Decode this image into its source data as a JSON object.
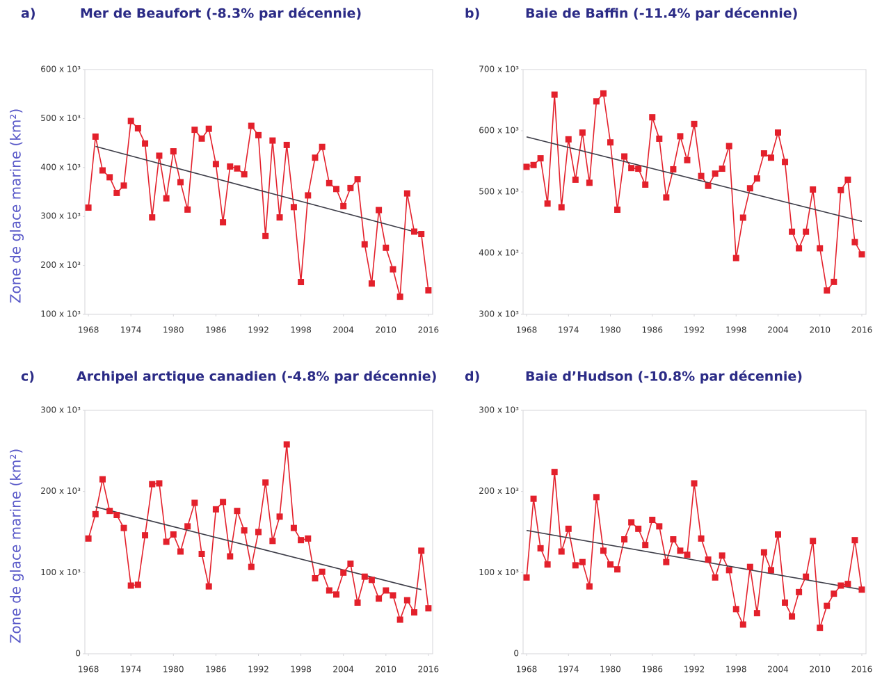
{
  "chart_data": [
    {
      "type": "line",
      "panel": "a)",
      "title": "Mer de Beaufort (-8.3% par décennie)",
      "ylabel": "Zone de glace marine (km²)",
      "color": "#e3202b",
      "x": [
        1968,
        1969,
        1970,
        1971,
        1972,
        1973,
        1974,
        1975,
        1976,
        1977,
        1978,
        1979,
        1980,
        1981,
        1982,
        1983,
        1984,
        1985,
        1986,
        1987,
        1988,
        1989,
        1990,
        1991,
        1992,
        1993,
        1994,
        1995,
        1996,
        1997,
        1998,
        1999,
        2000,
        2001,
        2002,
        2003,
        2004,
        2005,
        2006,
        2007,
        2008,
        2009,
        2010,
        2011,
        2012,
        2013,
        2014,
        2015,
        2016
      ],
      "values": [
        318000,
        463000,
        394000,
        380000,
        348000,
        363000,
        495000,
        480000,
        449000,
        298000,
        424000,
        337000,
        433000,
        370000,
        314000,
        477000,
        459000,
        479000,
        407000,
        288000,
        402000,
        398000,
        386000,
        485000,
        466000,
        260000,
        455000,
        298000,
        446000,
        319000,
        166000,
        343000,
        420000,
        442000,
        368000,
        356000,
        321000,
        358000,
        376000,
        243000,
        163000,
        313000,
        236000,
        192000,
        136000,
        347000,
        269000,
        264000,
        149000
      ],
      "trend": {
        "x": [
          1969,
          2015
        ],
        "values": [
          443000,
          265000
        ],
        "color": "#3d3d48"
      },
      "xlim": [
        1967.5,
        2016.6
      ],
      "xticks": [
        1968,
        1974,
        1980,
        1986,
        1992,
        1998,
        2004,
        2010,
        2016
      ],
      "ylim": [
        100000,
        600000
      ],
      "yticks": [
        {
          "value": 100000,
          "label": "100 x 10³"
        },
        {
          "value": 200000,
          "label": "200 x 10³"
        },
        {
          "value": 300000,
          "label": "300 x 10³"
        },
        {
          "value": 400000,
          "label": "400 x 10³"
        },
        {
          "value": 500000,
          "label": "500 x 10³"
        },
        {
          "value": 600000,
          "label": "600 x 10³"
        }
      ],
      "grid": false
    },
    {
      "type": "line",
      "panel": "b)",
      "title": "Baie de Baffin (-11.4% par décennie)",
      "color": "#e3202b",
      "x": [
        1968,
        1969,
        1970,
        1971,
        1972,
        1973,
        1974,
        1975,
        1976,
        1977,
        1978,
        1979,
        1980,
        1981,
        1982,
        1983,
        1984,
        1985,
        1986,
        1987,
        1988,
        1989,
        1990,
        1991,
        1992,
        1993,
        1994,
        1995,
        1996,
        1997,
        1998,
        1999,
        2000,
        2001,
        2002,
        2003,
        2004,
        2005,
        2006,
        2007,
        2008,
        2009,
        2010,
        2011,
        2012,
        2013,
        2014,
        2015,
        2016
      ],
      "values": [
        541000,
        544000,
        555000,
        481000,
        659000,
        475000,
        586000,
        520000,
        597000,
        515000,
        648000,
        661000,
        581000,
        471000,
        558000,
        539000,
        538000,
        512000,
        622000,
        587000,
        491000,
        537000,
        591000,
        552000,
        611000,
        526000,
        510000,
        530000,
        538000,
        575000,
        392000,
        458000,
        506000,
        522000,
        563000,
        556000,
        597000,
        549000,
        435000,
        408000,
        435000,
        504000,
        408000,
        339000,
        353000,
        503000,
        520000,
        418000,
        398000
      ],
      "trend": {
        "x": [
          1968,
          2016
        ],
        "values": [
          590000,
          452000
        ],
        "color": "#3d3d48"
      },
      "xlim": [
        1967.5,
        2016.6
      ],
      "xticks": [
        1968,
        1974,
        1980,
        1986,
        1992,
        1998,
        2004,
        2010,
        2016
      ],
      "ylim": [
        300000,
        700000
      ],
      "yticks": [
        {
          "value": 300000,
          "label": "300 x 10³"
        },
        {
          "value": 400000,
          "label": "400 x 10³"
        },
        {
          "value": 500000,
          "label": "500 x 10³"
        },
        {
          "value": 600000,
          "label": "600 x 10³"
        },
        {
          "value": 700000,
          "label": "700 x 10³"
        }
      ],
      "grid": false
    },
    {
      "type": "line",
      "panel": "c)",
      "title": "Archipel arctique canadien (-4.8% par décennie)",
      "ylabel": "Zone de glace marine (km²)",
      "color": "#e3202b",
      "x": [
        1968,
        1969,
        1970,
        1971,
        1972,
        1973,
        1974,
        1975,
        1976,
        1977,
        1978,
        1979,
        1980,
        1981,
        1982,
        1983,
        1984,
        1985,
        1986,
        1987,
        1988,
        1989,
        1990,
        1991,
        1992,
        1993,
        1994,
        1995,
        1996,
        1997,
        1998,
        1999,
        2000,
        2001,
        2002,
        2003,
        2004,
        2005,
        2006,
        2007,
        2008,
        2009,
        2010,
        2011,
        2012,
        2013,
        2014,
        2015,
        2016
      ],
      "values": [
        142000,
        172000,
        215000,
        176000,
        171000,
        155000,
        84000,
        85000,
        146000,
        209000,
        210000,
        138000,
        147000,
        126000,
        157000,
        186000,
        123000,
        83000,
        178000,
        187000,
        120000,
        176000,
        152000,
        107000,
        150000,
        211000,
        139000,
        169000,
        258000,
        155000,
        140000,
        142000,
        93000,
        101000,
        78000,
        73000,
        100000,
        111000,
        63000,
        95000,
        91000,
        68000,
        78000,
        72000,
        42000,
        66000,
        51000,
        127000,
        56000
      ],
      "trend": {
        "x": [
          1969,
          2015
        ],
        "values": [
          181000,
          79000
        ],
        "color": "#3d3d48"
      },
      "xlim": [
        1967.5,
        2016.6
      ],
      "xticks": [
        1968,
        1974,
        1980,
        1986,
        1992,
        1998,
        2004,
        2010,
        2016
      ],
      "ylim": [
        0,
        300000
      ],
      "yticks": [
        0,
        {
          "value": 100000,
          "label": "100 x 10³"
        },
        {
          "value": 200000,
          "label": "200 x 10³"
        },
        {
          "value": 300000,
          "label": "300 x 10³"
        }
      ],
      "grid": false
    },
    {
      "type": "line",
      "panel": "d)",
      "title": "Baie d’Hudson (-10.8% par décennie)",
      "color": "#e3202b",
      "x": [
        1968,
        1969,
        1970,
        1971,
        1972,
        1973,
        1974,
        1975,
        1976,
        1977,
        1978,
        1979,
        1980,
        1981,
        1982,
        1983,
        1984,
        1985,
        1986,
        1987,
        1988,
        1989,
        1990,
        1991,
        1992,
        1993,
        1994,
        1995,
        1996,
        1997,
        1998,
        1999,
        2000,
        2001,
        2002,
        2003,
        2004,
        2005,
        2006,
        2007,
        2008,
        2009,
        2010,
        2011,
        2012,
        2013,
        2014,
        2015,
        2016
      ],
      "values": [
        94000,
        191000,
        130000,
        110000,
        224000,
        126000,
        154000,
        109000,
        113000,
        83000,
        193000,
        127000,
        110000,
        104000,
        141000,
        162000,
        154000,
        134000,
        165000,
        157000,
        113000,
        141000,
        127000,
        122000,
        210000,
        142000,
        116000,
        94000,
        121000,
        103000,
        55000,
        36000,
        107000,
        50000,
        125000,
        103000,
        147000,
        63000,
        46000,
        76000,
        95000,
        139000,
        32000,
        59000,
        74000,
        84000,
        86000,
        140000,
        79000
      ],
      "trend": {
        "x": [
          1968,
          2016
        ],
        "values": [
          152000,
          79000
        ],
        "color": "#3d3d48"
      },
      "xlim": [
        1967.5,
        2016.6
      ],
      "xticks": [
        1968,
        1974,
        1980,
        1986,
        1992,
        1998,
        2004,
        2010,
        2016
      ],
      "ylim": [
        0,
        300000
      ],
      "yticks": [
        0,
        {
          "value": 100000,
          "label": "100 x 10³"
        },
        {
          "value": 200000,
          "label": "200 x 10³"
        },
        {
          "value": 300000,
          "label": "300 x 10³"
        }
      ],
      "grid": false
    }
  ]
}
